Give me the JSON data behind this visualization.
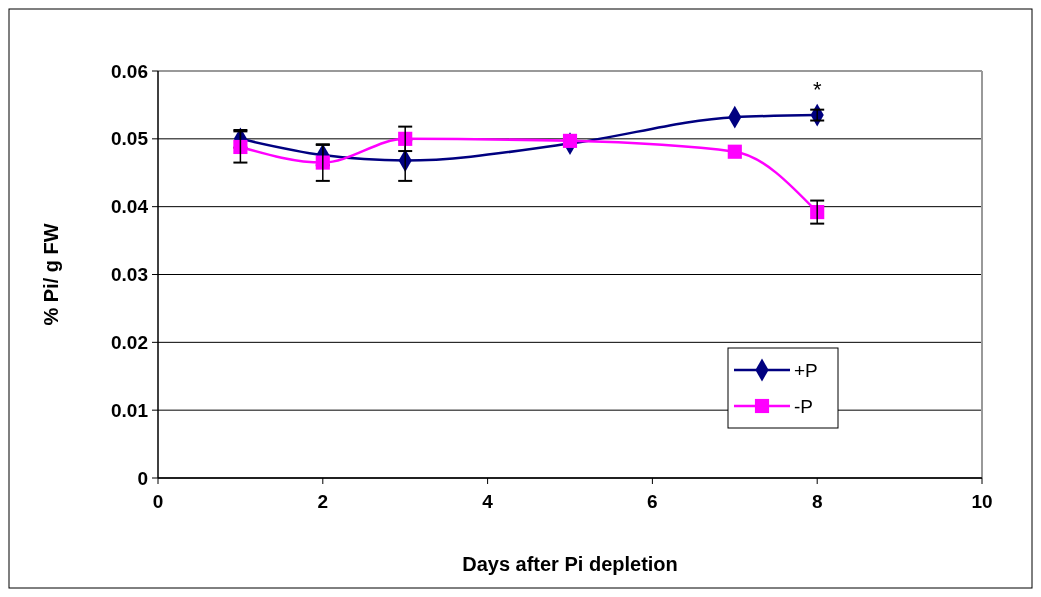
{
  "chart_data": {
    "type": "line",
    "xlabel": "Days after Pi depletion",
    "ylabel": "% Pi/ g FW",
    "xlim": [
      0,
      10
    ],
    "xticks": [
      0,
      2,
      4,
      6,
      8,
      10
    ],
    "ylim": [
      0,
      0.06
    ],
    "yticks": [
      0,
      0.01,
      0.02,
      0.03,
      0.04,
      0.05,
      0.06
    ],
    "grid": "y",
    "legend": "right",
    "line_style": "solid",
    "x": [
      1,
      2,
      3,
      5,
      7,
      8
    ],
    "series": [
      {
        "name": "+P",
        "color": "#000080",
        "marker": "diamond",
        "values": [
          0.05,
          0.0476,
          0.0468,
          0.0493,
          0.0532,
          0.0535
        ],
        "errors": [
          0.0013,
          0.0015,
          0.003,
          null,
          null,
          0.0008
        ]
      },
      {
        "name": "-P",
        "color": "#ff00ff",
        "marker": "square",
        "values": [
          0.0488,
          0.0465,
          0.05,
          0.0497,
          0.0481,
          0.0392
        ],
        "errors": [
          0.0023,
          0.0027,
          0.0018,
          null,
          null,
          0.0017
        ]
      }
    ],
    "annotations": [
      "*"
    ]
  }
}
